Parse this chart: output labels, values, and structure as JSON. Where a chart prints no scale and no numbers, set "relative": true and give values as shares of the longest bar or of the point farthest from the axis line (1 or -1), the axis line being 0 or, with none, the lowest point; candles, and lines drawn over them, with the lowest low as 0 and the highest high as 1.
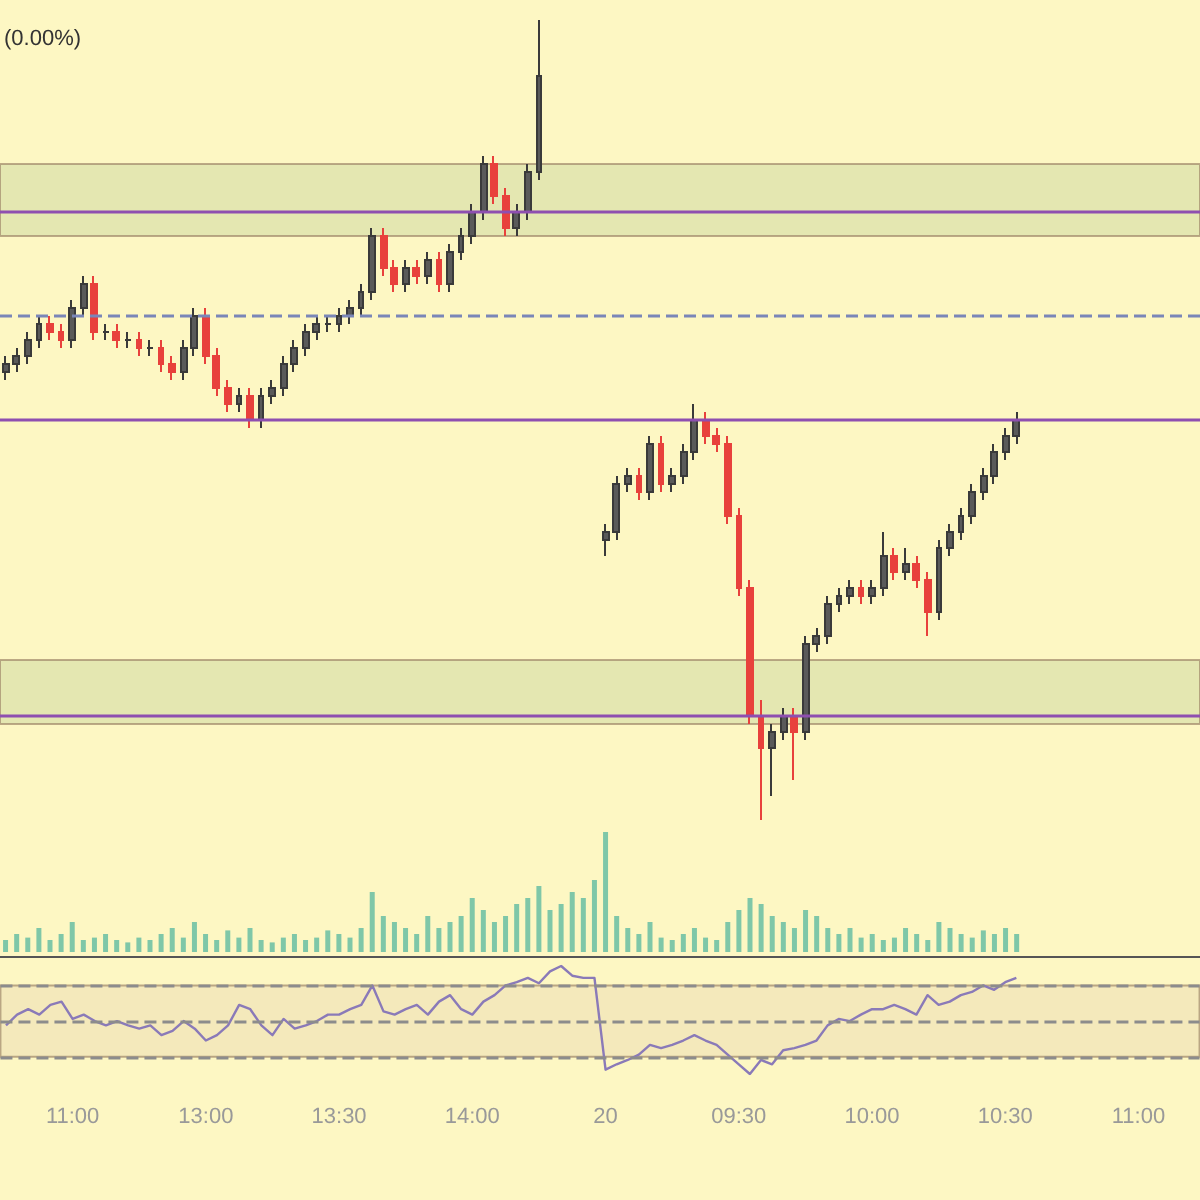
{
  "chart_data": [
    {
      "type": "candlestick",
      "relative": true,
      "tick_labels": false,
      "grid": false,
      "annotations": [
        "(0.00%)"
      ],
      "categories": [
        null,
        null,
        null,
        null,
        null,
        null,
        "11:00",
        null,
        null,
        null,
        null,
        null,
        null,
        null,
        null,
        null,
        null,
        null,
        "13:00",
        null,
        null,
        null,
        null,
        null,
        null,
        null,
        null,
        null,
        null,
        null,
        "13:30",
        null,
        null,
        null,
        null,
        null,
        null,
        null,
        null,
        null,
        null,
        null,
        "14:00",
        null,
        null,
        null,
        null,
        null,
        null,
        null,
        null,
        null,
        null,
        null,
        "20",
        null,
        null,
        null,
        null,
        null,
        null,
        null,
        null,
        null,
        null,
        null,
        "09:30",
        null,
        null,
        null,
        null,
        null,
        null,
        null,
        null,
        null,
        null,
        null,
        "10:00",
        null,
        null,
        null,
        null,
        null,
        null,
        null,
        null,
        null,
        null,
        null,
        "10:30",
        null,
        null,
        null,
        null,
        null,
        null,
        null,
        null,
        null,
        null,
        null,
        "11:00",
        null,
        null,
        null,
        null,
        null
      ],
      "ohlc": [
        [
          0.56,
          0.58,
          0.55,
          0.57
        ],
        [
          0.57,
          0.59,
          0.56,
          0.58
        ],
        [
          0.58,
          0.61,
          0.57,
          0.6
        ],
        [
          0.6,
          0.63,
          0.59,
          0.62
        ],
        [
          0.62,
          0.63,
          0.6,
          0.61
        ],
        [
          0.61,
          0.62,
          0.59,
          0.6
        ],
        [
          0.6,
          0.65,
          0.59,
          0.64
        ],
        [
          0.64,
          0.68,
          0.63,
          0.67
        ],
        [
          0.67,
          0.68,
          0.6,
          0.61
        ],
        [
          0.61,
          0.62,
          0.6,
          0.61
        ],
        [
          0.61,
          0.62,
          0.59,
          0.6
        ],
        [
          0.6,
          0.61,
          0.59,
          0.6
        ],
        [
          0.6,
          0.61,
          0.58,
          0.59
        ],
        [
          0.59,
          0.6,
          0.58,
          0.59
        ],
        [
          0.59,
          0.6,
          0.56,
          0.57
        ],
        [
          0.57,
          0.58,
          0.55,
          0.56
        ],
        [
          0.56,
          0.6,
          0.55,
          0.59
        ],
        [
          0.59,
          0.64,
          0.58,
          0.63
        ],
        [
          0.63,
          0.64,
          0.57,
          0.58
        ],
        [
          0.58,
          0.59,
          0.53,
          0.54
        ],
        [
          0.54,
          0.55,
          0.51,
          0.52
        ],
        [
          0.52,
          0.54,
          0.51,
          0.53
        ],
        [
          0.53,
          0.54,
          0.49,
          0.5
        ],
        [
          0.5,
          0.54,
          0.49,
          0.53
        ],
        [
          0.53,
          0.55,
          0.52,
          0.54
        ],
        [
          0.54,
          0.58,
          0.53,
          0.57
        ],
        [
          0.57,
          0.6,
          0.56,
          0.59
        ],
        [
          0.59,
          0.62,
          0.58,
          0.61
        ],
        [
          0.61,
          0.63,
          0.6,
          0.62
        ],
        [
          0.62,
          0.63,
          0.61,
          0.62
        ],
        [
          0.62,
          0.64,
          0.61,
          0.63
        ],
        [
          0.63,
          0.65,
          0.62,
          0.64
        ],
        [
          0.64,
          0.67,
          0.63,
          0.66
        ],
        [
          0.66,
          0.74,
          0.65,
          0.73
        ],
        [
          0.73,
          0.74,
          0.68,
          0.69
        ],
        [
          0.69,
          0.7,
          0.66,
          0.67
        ],
        [
          0.67,
          0.7,
          0.66,
          0.69
        ],
        [
          0.69,
          0.7,
          0.67,
          0.68
        ],
        [
          0.68,
          0.71,
          0.67,
          0.7
        ],
        [
          0.7,
          0.71,
          0.66,
          0.67
        ],
        [
          0.67,
          0.72,
          0.66,
          0.71
        ],
        [
          0.71,
          0.74,
          0.7,
          0.73
        ],
        [
          0.73,
          0.77,
          0.72,
          0.76
        ],
        [
          0.76,
          0.83,
          0.75,
          0.82
        ],
        [
          0.82,
          0.83,
          0.77,
          0.78
        ],
        [
          0.78,
          0.79,
          0.73,
          0.74
        ],
        [
          0.74,
          0.77,
          0.73,
          0.76
        ],
        [
          0.76,
          0.82,
          0.75,
          0.81
        ],
        [
          0.81,
          1,
          0.8,
          0.93
        ],
        null,
        null,
        null,
        null,
        null,
        [
          0.35,
          0.37,
          0.33,
          0.36
        ],
        [
          0.36,
          0.43,
          0.35,
          0.42
        ],
        [
          0.42,
          0.44,
          0.41,
          0.43
        ],
        [
          0.43,
          0.44,
          0.4,
          0.41
        ],
        [
          0.41,
          0.48,
          0.4,
          0.47
        ],
        [
          0.47,
          0.48,
          0.41,
          0.42
        ],
        [
          0.42,
          0.44,
          0.41,
          0.43
        ],
        [
          0.43,
          0.47,
          0.42,
          0.46
        ],
        [
          0.46,
          0.52,
          0.45,
          0.5
        ],
        [
          0.5,
          0.51,
          0.47,
          0.48
        ],
        [
          0.48,
          0.49,
          0.46,
          0.47
        ],
        [
          0.47,
          0.48,
          0.37,
          0.38
        ],
        [
          0.38,
          0.39,
          0.28,
          0.29
        ],
        [
          0.29,
          0.3,
          0.12,
          0.13
        ],
        [
          0.13,
          0.15,
          0,
          0.09
        ],
        [
          0.09,
          0.12,
          0.03,
          0.11
        ],
        [
          0.11,
          0.14,
          0.1,
          0.13
        ],
        [
          0.13,
          0.14,
          0.05,
          0.11
        ],
        [
          0.11,
          0.23,
          0.1,
          0.22
        ],
        [
          0.22,
          0.24,
          0.21,
          0.23
        ],
        [
          0.23,
          0.28,
          0.22,
          0.27
        ],
        [
          0.27,
          0.29,
          0.26,
          0.28
        ],
        [
          0.28,
          0.3,
          0.27,
          0.29
        ],
        [
          0.29,
          0.3,
          0.27,
          0.28
        ],
        [
          0.28,
          0.3,
          0.27,
          0.29
        ],
        [
          0.29,
          0.36,
          0.28,
          0.33
        ],
        [
          0.33,
          0.34,
          0.3,
          0.31
        ],
        [
          0.31,
          0.34,
          0.3,
          0.32
        ],
        [
          0.32,
          0.33,
          0.29,
          0.3
        ],
        [
          0.3,
          0.31,
          0.23,
          0.26
        ],
        [
          0.26,
          0.35,
          0.25,
          0.34
        ],
        [
          0.34,
          0.37,
          0.33,
          0.36
        ],
        [
          0.36,
          0.39,
          0.35,
          0.38
        ],
        [
          0.38,
          0.42,
          0.37,
          0.41
        ],
        [
          0.41,
          0.44,
          0.4,
          0.43
        ],
        [
          0.43,
          0.47,
          0.42,
          0.46
        ],
        [
          0.46,
          0.49,
          0.45,
          0.48
        ],
        [
          0.48,
          0.51,
          0.47,
          0.5
        ],
        null,
        null,
        null,
        null,
        null,
        null,
        null,
        null,
        null,
        null,
        null,
        null,
        null,
        null,
        null,
        null
      ],
      "ref_lines": [
        {
          "axis": "y",
          "value": 0.76,
          "color": "#8e4fb0",
          "line_style": "solid"
        },
        {
          "axis": "y",
          "value": 0.63,
          "color": "#7a86b8",
          "line_style": "dashed"
        },
        {
          "axis": "y",
          "value": 0.5,
          "color": "#8e4fb0",
          "line_style": "solid"
        },
        {
          "axis": "y",
          "value": 0.13,
          "color": "#8e4fb0",
          "line_style": "solid"
        }
      ],
      "bands": [
        {
          "axis": "y",
          "from": 0.73,
          "to": 0.82,
          "color": "#d9dfa9"
        },
        {
          "axis": "y",
          "from": 0.12,
          "to": 0.2,
          "color": "#d9dfa9"
        }
      ]
    },
    {
      "type": "bar",
      "relative": true,
      "tick_labels": false,
      "grid": false,
      "color": "#7fc7a8",
      "categories": [
        null,
        null,
        null,
        null,
        null,
        null,
        "11:00",
        null,
        null,
        null,
        null,
        null,
        null,
        null,
        null,
        null,
        null,
        null,
        "13:00",
        null,
        null,
        null,
        null,
        null,
        null,
        null,
        null,
        null,
        null,
        null,
        "13:30",
        null,
        null,
        null,
        null,
        null,
        null,
        null,
        null,
        null,
        null,
        null,
        "14:00",
        null,
        null,
        null,
        null,
        null,
        null,
        null,
        null,
        null,
        null,
        null,
        "20",
        null,
        null,
        null,
        null,
        null,
        null,
        null,
        null,
        null,
        null,
        null,
        "09:30",
        null,
        null,
        null,
        null,
        null,
        null,
        null,
        null,
        null,
        null,
        null,
        "10:00",
        null,
        null,
        null,
        null,
        null,
        null,
        null,
        null,
        null,
        null,
        null,
        "10:30",
        null,
        null,
        null,
        null,
        null,
        null,
        null,
        null,
        null,
        null,
        null,
        "11:00",
        null,
        null,
        null,
        null,
        null
      ],
      "values": [
        0.1,
        0.15,
        0.12,
        0.2,
        0.1,
        0.15,
        0.25,
        0.1,
        0.12,
        0.15,
        0.1,
        0.08,
        0.12,
        0.1,
        0.15,
        0.2,
        0.12,
        0.25,
        0.15,
        0.1,
        0.18,
        0.12,
        0.2,
        0.1,
        0.08,
        0.12,
        0.15,
        0.1,
        0.12,
        0.18,
        0.15,
        0.12,
        0.2,
        0.5,
        0.3,
        0.25,
        0.2,
        0.15,
        0.3,
        0.2,
        0.25,
        0.3,
        0.45,
        0.35,
        0.25,
        0.3,
        0.4,
        0.45,
        0.55,
        0.35,
        0.4,
        0.5,
        0.45,
        0.6,
        1,
        0.3,
        0.2,
        0.15,
        0.25,
        0.12,
        0.1,
        0.15,
        0.2,
        0.12,
        0.1,
        0.25,
        0.35,
        0.45,
        0.4,
        0.3,
        0.25,
        0.2,
        0.35,
        0.3,
        0.2,
        0.15,
        0.2,
        0.12,
        0.15,
        0.1,
        0.12,
        0.2,
        0.15,
        0.1,
        0.25,
        0.2,
        0.15,
        0.12,
        0.18,
        0.15,
        0.2,
        0.15,
        null,
        null,
        null,
        null,
        null,
        null,
        null,
        null,
        null,
        null,
        null,
        null,
        null,
        null,
        null,
        null
      ]
    },
    {
      "type": "line",
      "relative": true,
      "tick_labels": "x",
      "grid": false,
      "marker": "none",
      "line_style": "solid",
      "color": "#8a7ab8",
      "categories": [
        null,
        null,
        null,
        null,
        null,
        null,
        "11:00",
        null,
        null,
        null,
        null,
        null,
        null,
        null,
        null,
        null,
        null,
        null,
        "13:00",
        null,
        null,
        null,
        null,
        null,
        null,
        null,
        null,
        null,
        null,
        null,
        "13:30",
        null,
        null,
        null,
        null,
        null,
        null,
        null,
        null,
        null,
        null,
        null,
        "14:00",
        null,
        null,
        null,
        null,
        null,
        null,
        null,
        null,
        null,
        null,
        null,
        "20",
        null,
        null,
        null,
        null,
        null,
        null,
        null,
        null,
        null,
        null,
        null,
        "09:30",
        null,
        null,
        null,
        null,
        null,
        null,
        null,
        null,
        null,
        null,
        null,
        "10:00",
        null,
        null,
        null,
        null,
        null,
        null,
        null,
        null,
        null,
        null,
        null,
        "10:30",
        null,
        null,
        null,
        null,
        null,
        null,
        null,
        null,
        null,
        null,
        null,
        "11:00",
        null,
        null,
        null,
        null,
        null
      ],
      "values": [
        0.45,
        0.55,
        0.6,
        0.55,
        0.64,
        0.67,
        0.51,
        0.55,
        0.49,
        0.45,
        0.49,
        0.45,
        0.42,
        0.45,
        0.36,
        0.4,
        0.49,
        0.42,
        0.31,
        0.36,
        0.45,
        0.64,
        0.6,
        0.45,
        0.36,
        0.51,
        0.42,
        0.45,
        0.49,
        0.55,
        0.55,
        0.6,
        0.64,
        0.82,
        0.58,
        0.55,
        0.6,
        0.64,
        0.55,
        0.67,
        0.73,
        0.6,
        0.55,
        0.67,
        0.73,
        0.82,
        0.85,
        0.89,
        0.84,
        0.95,
        1,
        0.91,
        0.89,
        0.89,
        0.04,
        0.09,
        0.13,
        0.18,
        0.27,
        0.24,
        0.27,
        0.31,
        0.36,
        0.31,
        0.27,
        0.18,
        0.09,
        0,
        0.13,
        0.09,
        0.22,
        0.24,
        0.27,
        0.31,
        0.45,
        0.51,
        0.49,
        0.55,
        0.6,
        0.6,
        0.64,
        0.6,
        0.55,
        0.73,
        0.64,
        0.67,
        0.73,
        0.76,
        0.82,
        0.78,
        0.85,
        0.89,
        null,
        null,
        null,
        null,
        null,
        null,
        null,
        null,
        null,
        null,
        null,
        null,
        null,
        null,
        null,
        null
      ],
      "ref_lines": [
        {
          "axis": "y",
          "value": 0.82,
          "color": "#8c8c8c",
          "line_style": "dashed"
        },
        {
          "axis": "y",
          "value": 0.49,
          "color": "#8c8c8c",
          "line_style": "dashed"
        },
        {
          "axis": "y",
          "value": 0.16,
          "color": "#8c8c8c",
          "line_style": "dashed"
        }
      ],
      "bands": [
        {
          "axis": "y",
          "from": 0.16,
          "to": 0.82,
          "color": "#f0e2b8"
        }
      ]
    }
  ]
}
